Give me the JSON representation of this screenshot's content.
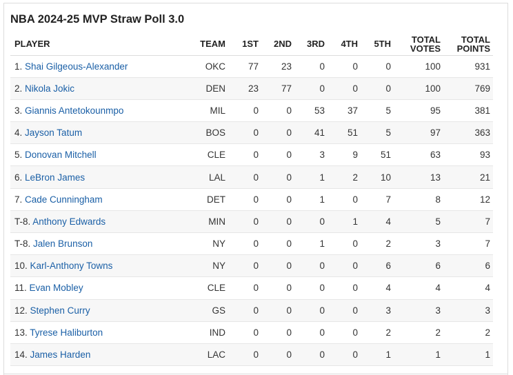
{
  "title": "NBA 2024-25 MVP Straw Poll 3.0",
  "columns": {
    "player": "PLAYER",
    "team": "TEAM",
    "first": "1ST",
    "second": "2ND",
    "third": "3RD",
    "fourth": "4TH",
    "fifth": "5TH",
    "total_votes_1": "TOTAL",
    "total_votes_2": "VOTES",
    "total_points_1": "TOTAL",
    "total_points_2": "POINTS"
  },
  "rows": [
    {
      "rank": "1.",
      "name": "Shai Gilgeous-Alexander",
      "team": "OKC",
      "first": "77",
      "second": "23",
      "third": "0",
      "fourth": "0",
      "fifth": "0",
      "votes": "100",
      "points": "931"
    },
    {
      "rank": "2.",
      "name": "Nikola Jokic",
      "team": "DEN",
      "first": "23",
      "second": "77",
      "third": "0",
      "fourth": "0",
      "fifth": "0",
      "votes": "100",
      "points": "769"
    },
    {
      "rank": "3.",
      "name": "Giannis Antetokounmpo",
      "team": "MIL",
      "first": "0",
      "second": "0",
      "third": "53",
      "fourth": "37",
      "fifth": "5",
      "votes": "95",
      "points": "381"
    },
    {
      "rank": "4.",
      "name": "Jayson Tatum",
      "team": "BOS",
      "first": "0",
      "second": "0",
      "third": "41",
      "fourth": "51",
      "fifth": "5",
      "votes": "97",
      "points": "363"
    },
    {
      "rank": "5.",
      "name": "Donovan Mitchell",
      "team": "CLE",
      "first": "0",
      "second": "0",
      "third": "3",
      "fourth": "9",
      "fifth": "51",
      "votes": "63",
      "points": "93"
    },
    {
      "rank": "6.",
      "name": "LeBron James",
      "team": "LAL",
      "first": "0",
      "second": "0",
      "third": "1",
      "fourth": "2",
      "fifth": "10",
      "votes": "13",
      "points": "21"
    },
    {
      "rank": "7.",
      "name": "Cade Cunningham",
      "team": "DET",
      "first": "0",
      "second": "0",
      "third": "1",
      "fourth": "0",
      "fifth": "7",
      "votes": "8",
      "points": "12"
    },
    {
      "rank": "T-8.",
      "name": "Anthony Edwards",
      "team": "MIN",
      "first": "0",
      "second": "0",
      "third": "0",
      "fourth": "1",
      "fifth": "4",
      "votes": "5",
      "points": "7"
    },
    {
      "rank": "T-8.",
      "name": "Jalen Brunson",
      "team": "NY",
      "first": "0",
      "second": "0",
      "third": "1",
      "fourth": "0",
      "fifth": "2",
      "votes": "3",
      "points": "7"
    },
    {
      "rank": "10.",
      "name": "Karl-Anthony Towns",
      "team": "NY",
      "first": "0",
      "second": "0",
      "third": "0",
      "fourth": "0",
      "fifth": "6",
      "votes": "6",
      "points": "6"
    },
    {
      "rank": "11.",
      "name": "Evan Mobley",
      "team": "CLE",
      "first": "0",
      "second": "0",
      "third": "0",
      "fourth": "0",
      "fifth": "4",
      "votes": "4",
      "points": "4"
    },
    {
      "rank": "12.",
      "name": "Stephen Curry",
      "team": "GS",
      "first": "0",
      "second": "0",
      "third": "0",
      "fourth": "0",
      "fifth": "3",
      "votes": "3",
      "points": "3"
    },
    {
      "rank": "13.",
      "name": "Tyrese Haliburton",
      "team": "IND",
      "first": "0",
      "second": "0",
      "third": "0",
      "fourth": "0",
      "fifth": "2",
      "votes": "2",
      "points": "2"
    },
    {
      "rank": "14.",
      "name": "James Harden",
      "team": "LAC",
      "first": "0",
      "second": "0",
      "third": "0",
      "fourth": "0",
      "fifth": "1",
      "votes": "1",
      "points": "1"
    }
  ],
  "colors": {
    "link": "#1a5fa6",
    "stripe": "#f7f7f7",
    "border": "#dcdcdc"
  }
}
